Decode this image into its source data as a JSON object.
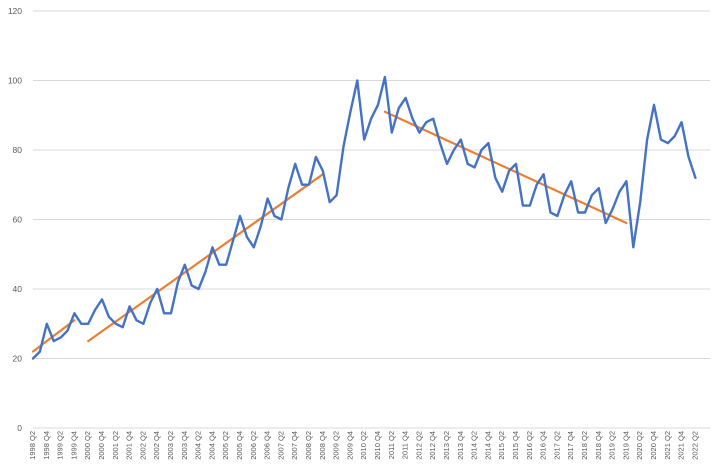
{
  "chart_data": {
    "type": "line",
    "title": "",
    "xlabel": "",
    "ylabel": "",
    "ylim": [
      0,
      120
    ],
    "yticks": [
      0,
      20,
      40,
      60,
      80,
      100,
      120
    ],
    "grid": "horizontal",
    "legend": "none",
    "x_tick_labels": [
      "1998 Q2",
      "1998 Q4",
      "1999 Q2",
      "1999 Q4",
      "2000 Q2",
      "2000 Q4",
      "2001 Q2",
      "2001 Q4",
      "2002 Q2",
      "2002 Q4",
      "2003 Q2",
      "2003 Q4",
      "2004 Q2",
      "2004 Q4",
      "2005 Q2",
      "2005 Q4",
      "2006 Q2",
      "2006 Q4",
      "2007 Q2",
      "2007 Q4",
      "2008 Q2",
      "2008 Q4",
      "2009 Q2",
      "2009 Q4",
      "2010 Q2",
      "2010 Q4",
      "2011 Q2",
      "2011 Q4",
      "2012 Q2",
      "2012 Q4",
      "2013 Q2",
      "2013 Q4",
      "2014 Q2",
      "2014 Q4",
      "2015 Q2",
      "2015 Q4",
      "2016 Q2",
      "2016 Q4",
      "2017 Q2",
      "2017 Q4",
      "2018 Q2",
      "2018 Q4",
      "2019 Q2",
      "2019 Q4",
      "2020 Q2",
      "2020 Q4",
      "2021 Q2",
      "2021 Q4",
      "2022 Q2"
    ],
    "series": [
      {
        "color": "#4472c4",
        "start_quarter": "1998 Q2",
        "values": [
          20,
          22,
          30,
          25,
          26,
          28,
          33,
          30,
          30,
          34,
          37,
          32,
          30,
          29,
          35,
          31,
          30,
          36,
          40,
          33,
          33,
          42,
          47,
          41,
          40,
          45,
          52,
          47,
          47,
          54,
          61,
          55,
          52,
          58,
          66,
          61,
          60,
          69,
          76,
          70,
          70,
          78,
          74,
          65,
          67,
          81,
          91,
          100,
          83,
          89,
          93,
          101,
          85,
          92,
          95,
          89,
          85,
          88,
          89,
          82,
          76,
          80,
          83,
          76,
          75,
          80,
          82,
          72,
          68,
          74,
          76,
          64,
          64,
          70,
          73,
          62,
          61,
          67,
          71,
          62,
          62,
          67,
          69,
          59,
          63,
          68,
          71,
          52,
          65,
          83,
          93,
          83,
          82,
          84,
          88,
          78,
          72
        ]
      }
    ],
    "trendlines": [
      {
        "color": "#ed7d31",
        "from": [
          "1998 Q2",
          22
        ],
        "to": [
          "1999 Q4",
          31
        ]
      },
      {
        "color": "#ed7d31",
        "from": [
          "2000 Q2",
          25
        ],
        "to": [
          "2008 Q4",
          73
        ]
      },
      {
        "color": "#ed7d31",
        "from": [
          "2011 Q1",
          91
        ],
        "to": [
          "2019 Q4",
          59
        ]
      }
    ]
  }
}
